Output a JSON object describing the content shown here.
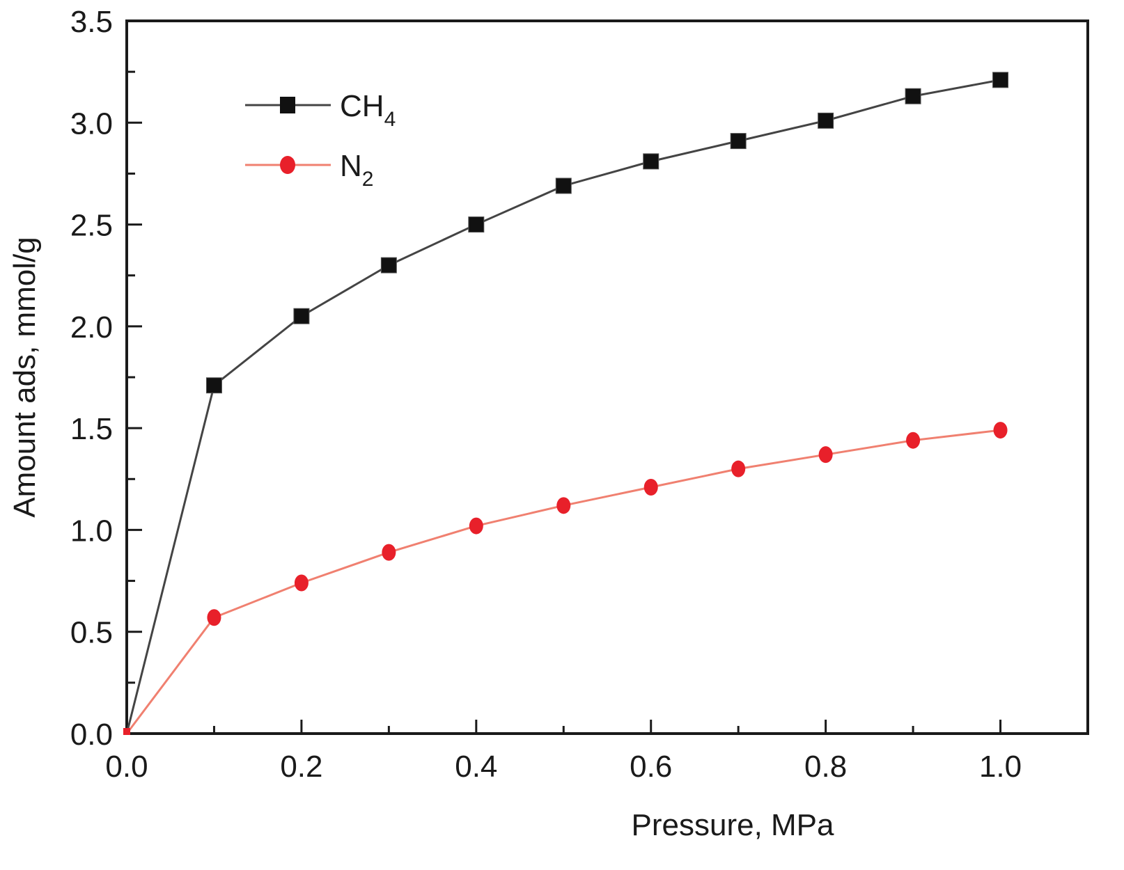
{
  "chart_data": {
    "type": "line",
    "title": "",
    "xlabel": "Pressure, MPa",
    "ylabel": "Amount ads, mmol/g",
    "xlim": [
      0.0,
      1.1
    ],
    "ylim": [
      0.0,
      3.5
    ],
    "x_ticks": [
      "0.0",
      "0.2",
      "0.4",
      "0.6",
      "0.8",
      "1.0"
    ],
    "x_tick_values": [
      0.0,
      0.2,
      0.4,
      0.6,
      0.8,
      1.0
    ],
    "x_minor_ticks": [
      0.1,
      0.3,
      0.5,
      0.7,
      0.9
    ],
    "y_ticks": [
      "0.0",
      "0.5",
      "1.0",
      "1.5",
      "2.0",
      "2.5",
      "3.0",
      "3.5"
    ],
    "y_tick_values": [
      0.0,
      0.5,
      1.0,
      1.5,
      2.0,
      2.5,
      3.0,
      3.5
    ],
    "y_minor_ticks": [
      0.25,
      0.75,
      1.25,
      1.75,
      2.25,
      2.75,
      3.25
    ],
    "grid": false,
    "legend_position": "top-left",
    "x": [
      0.0,
      0.1,
      0.2,
      0.3,
      0.4,
      0.5,
      0.6,
      0.7,
      0.8,
      0.9,
      1.0
    ],
    "series": [
      {
        "name": "CH4",
        "label_main": "CH",
        "label_sub": "4",
        "marker": "square",
        "color": "#111111",
        "line_color": "#444444",
        "values": [
          0.0,
          1.71,
          2.05,
          2.3,
          2.5,
          2.69,
          2.81,
          2.91,
          3.01,
          3.13,
          3.21
        ]
      },
      {
        "name": "N2",
        "label_main": "N",
        "label_sub": "2",
        "marker": "circle",
        "color": "#e8202a",
        "line_color": "#f08070",
        "values": [
          0.0,
          0.57,
          0.74,
          0.89,
          1.02,
          1.12,
          1.21,
          1.3,
          1.37,
          1.44,
          1.49
        ]
      }
    ]
  }
}
